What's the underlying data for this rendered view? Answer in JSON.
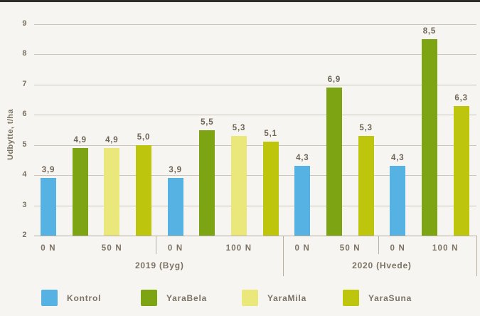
{
  "colors": {
    "background": "#f7f5f1",
    "top_border": "#2e2d2b",
    "grid": "#ccc5b9",
    "text": "#7b7264",
    "value_label": "#6d6456"
  },
  "chart_data": {
    "type": "bar",
    "title": "",
    "ylabel": "Udbytte, t/ha",
    "xlabel": "",
    "ylim": [
      2,
      9
    ],
    "yticks": [
      2,
      3,
      4,
      5,
      6,
      7,
      8,
      9
    ],
    "grid": true,
    "decimal_separator": ",",
    "legend_position": "bottom",
    "series": [
      {
        "name": "Kontrol",
        "color": "#55b2e2"
      },
      {
        "name": "YaraBela",
        "color": "#7da413"
      },
      {
        "name": "YaraMila",
        "color": "#eae87a"
      },
      {
        "name": "YaraSuna",
        "color": "#bdc50c"
      }
    ],
    "groups": [
      {
        "label": "2019 (Byg)",
        "subgroups": [
          {
            "label": "0 N",
            "bars": [
              {
                "series": "Kontrol",
                "value": 3.9,
                "label": "3,9"
              }
            ]
          },
          {
            "label": "50 N",
            "bars": [
              {
                "series": "YaraBela",
                "value": 4.9,
                "label": "4,9"
              },
              {
                "series": "YaraMila",
                "value": 4.9,
                "label": "4,9"
              },
              {
                "series": "YaraSuna",
                "value": 5.0,
                "label": "5,0"
              }
            ]
          },
          {
            "label": "0 N",
            "bars": [
              {
                "series": "Kontrol",
                "value": 3.9,
                "label": "3,9"
              }
            ]
          },
          {
            "label": "100 N",
            "bars": [
              {
                "series": "YaraBela",
                "value": 5.5,
                "label": "5,5"
              },
              {
                "series": "YaraMila",
                "value": 5.3,
                "label": "5,3"
              },
              {
                "series": "YaraSuna",
                "value": 5.1,
                "label": "5,1"
              }
            ]
          }
        ]
      },
      {
        "label": "2020 (Hvede)",
        "subgroups": [
          {
            "label": "0 N",
            "bars": [
              {
                "series": "Kontrol",
                "value": 4.3,
                "label": "4,3"
              }
            ]
          },
          {
            "label": "50 N",
            "bars": [
              {
                "series": "YaraBela",
                "value": 6.9,
                "label": "6,9"
              },
              {
                "series": "YaraSuna",
                "value": 5.3,
                "label": "5,3"
              }
            ]
          },
          {
            "label": "0 N",
            "bars": [
              {
                "series": "Kontrol",
                "value": 4.3,
                "label": "4,3"
              }
            ]
          },
          {
            "label": "100 N",
            "bars": [
              {
                "series": "YaraBela",
                "value": 8.5,
                "label": "8,5"
              },
              {
                "series": "YaraSuna",
                "value": 6.3,
                "label": "6,3"
              }
            ]
          }
        ]
      }
    ],
    "legend": [
      "Kontrol",
      "YaraBela",
      "YaraMila",
      "YaraSuna"
    ]
  }
}
